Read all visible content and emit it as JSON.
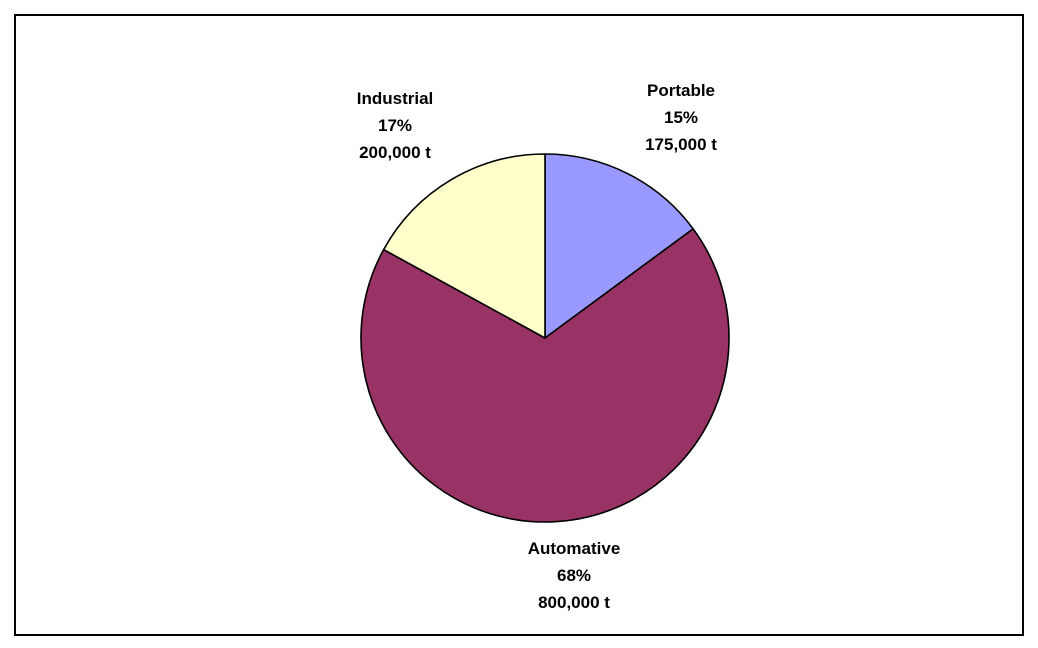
{
  "chart_data": {
    "type": "pie",
    "title": "",
    "slices": [
      {
        "label": "Portable",
        "percent": "15%",
        "amount": "175,000 t",
        "value": 175000,
        "share": 15,
        "color": "#9999ff"
      },
      {
        "label": "Automative",
        "percent": "68%",
        "amount": "800,000 t",
        "value": 800000,
        "share": 68,
        "color": "#993366"
      },
      {
        "label": "Industrial",
        "percent": "17%",
        "amount": "200,000 t",
        "value": 200000,
        "share": 17,
        "color": "#ffffcc"
      }
    ],
    "start_angle": "12 o'clock",
    "direction": "clockwise",
    "legend": "none"
  }
}
